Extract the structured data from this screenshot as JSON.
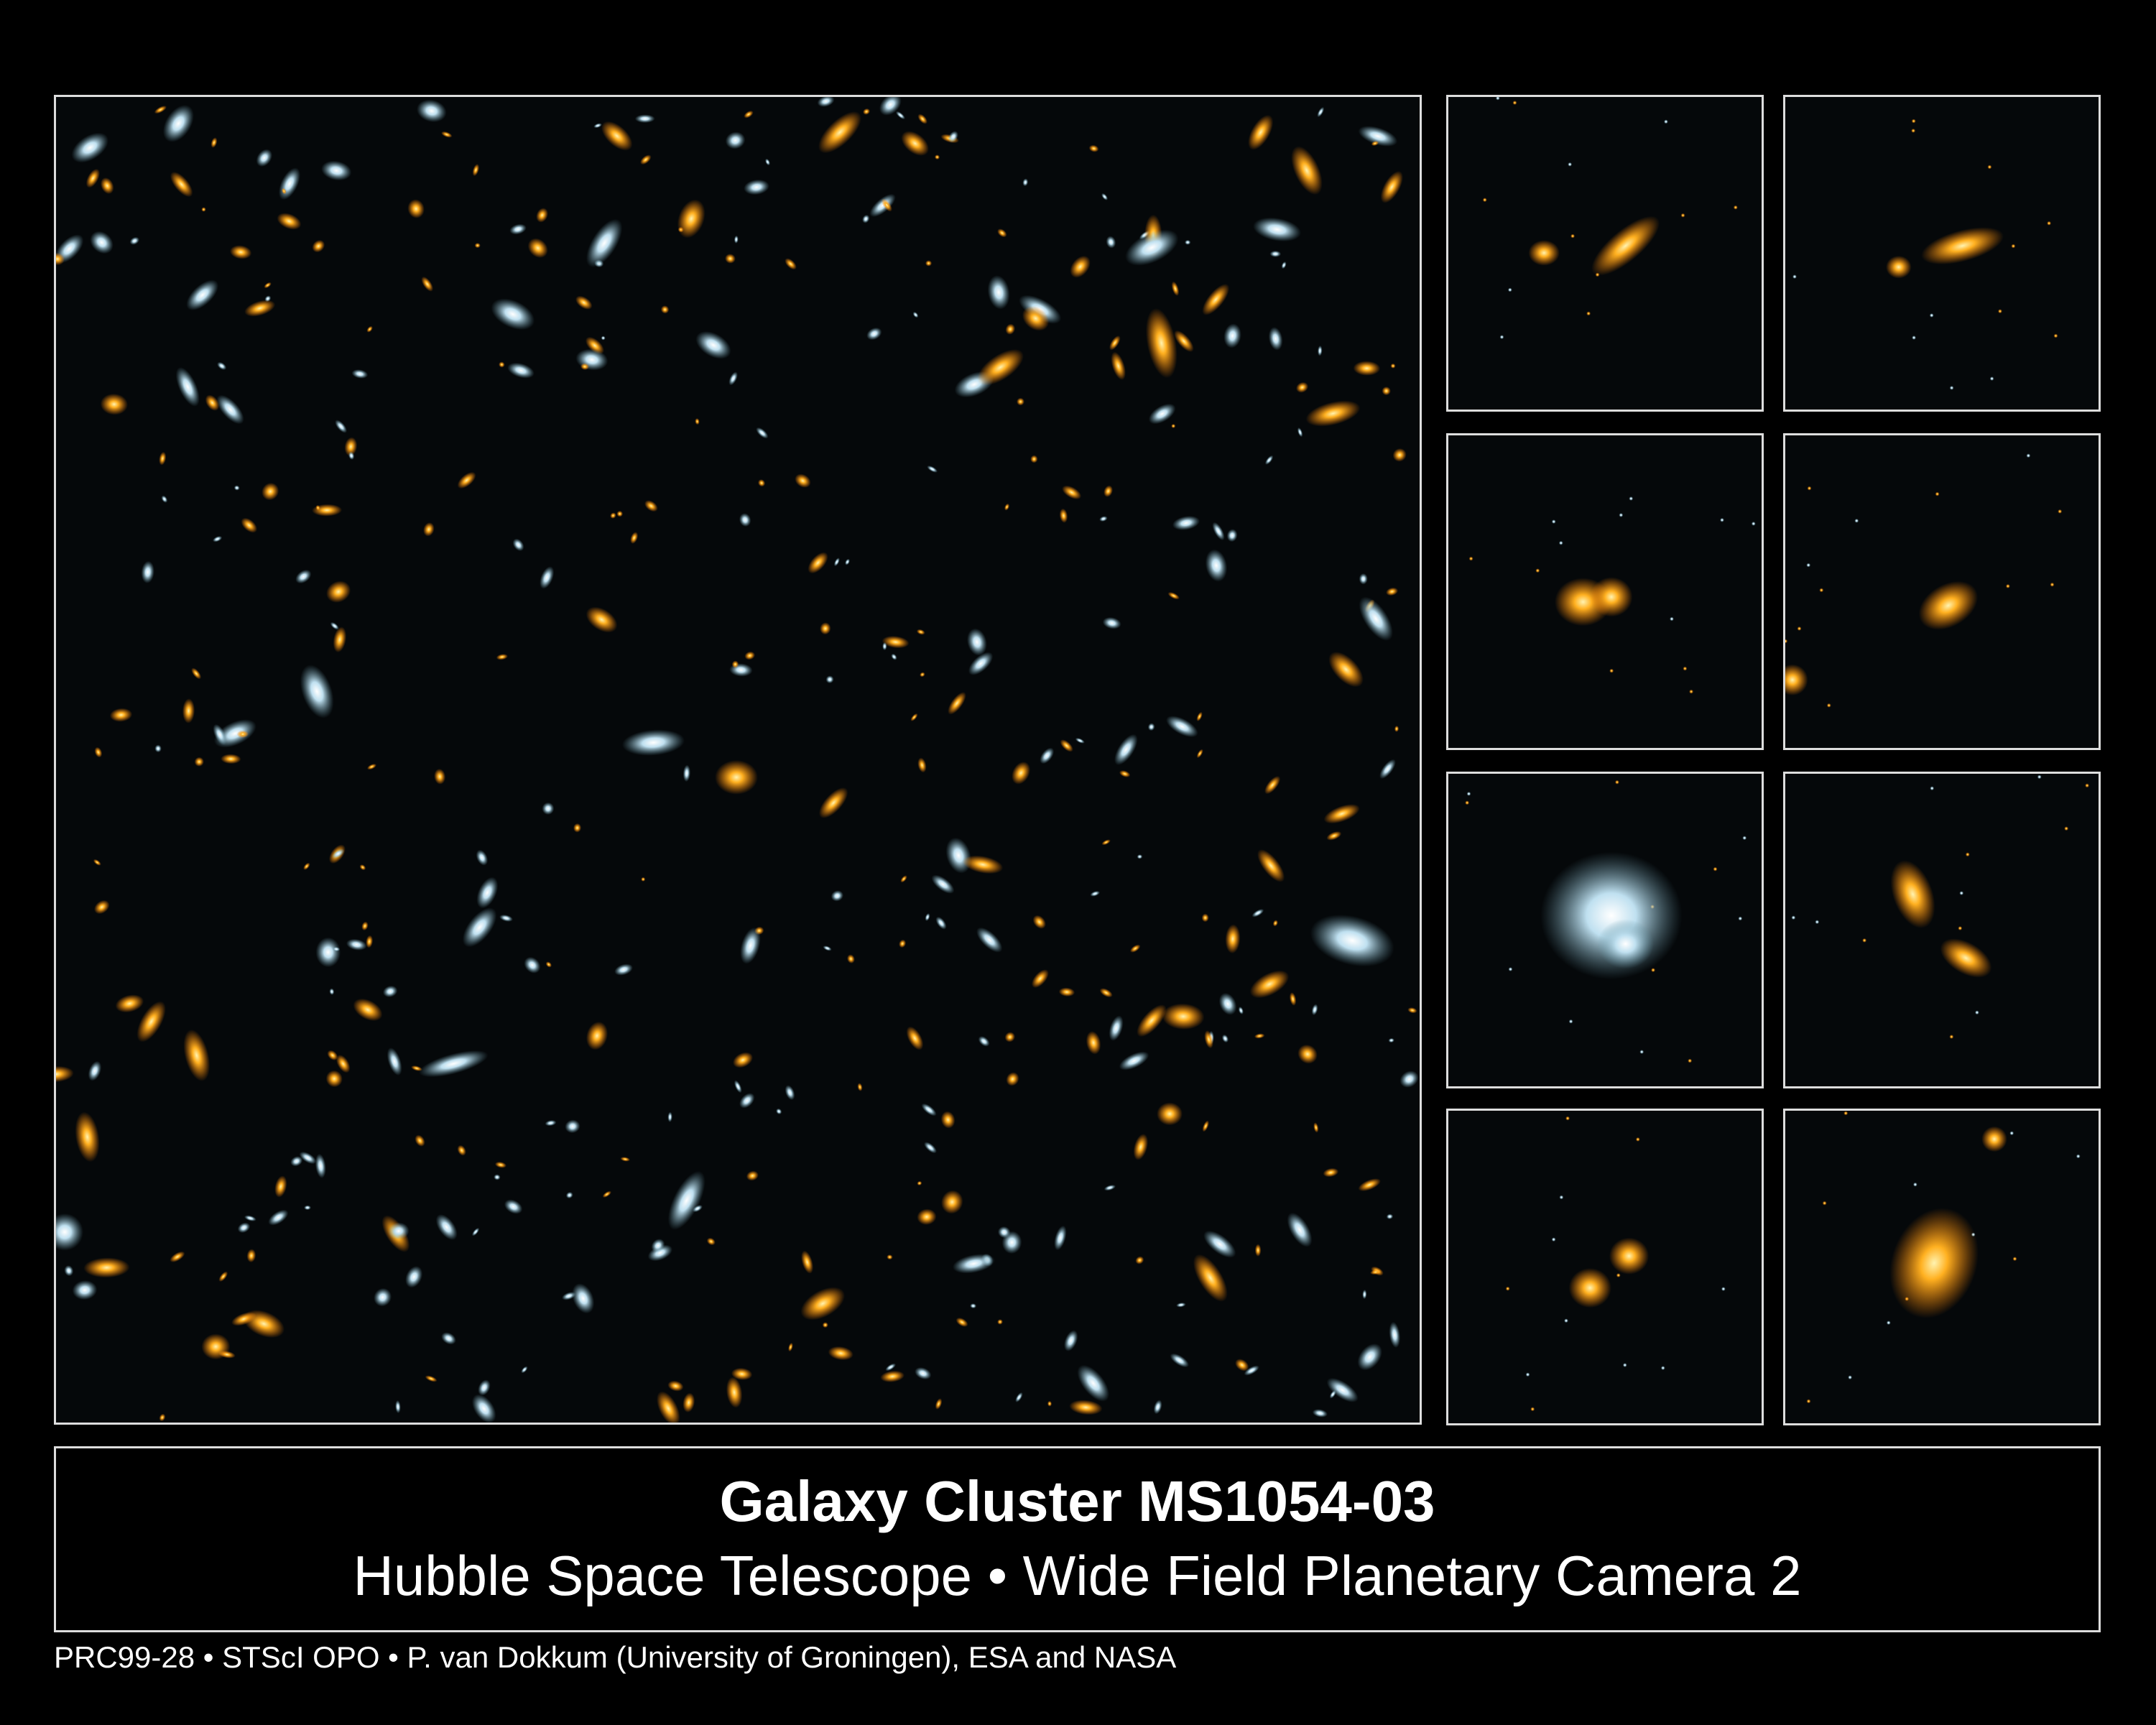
{
  "caption": {
    "title": "Galaxy Cluster MS1054-03",
    "subtitle": "Hubble Space Telescope • Wide Field Planetary Camera 2"
  },
  "credit": "PRC99-28 • STScI OPO • P. van Dokkum (University of Groningen), ESA and NASA",
  "colors": {
    "background": "#000000",
    "border": "#dddddd",
    "galaxy_warm": "#ffb020",
    "galaxy_cool": "#cfe8ff"
  }
}
